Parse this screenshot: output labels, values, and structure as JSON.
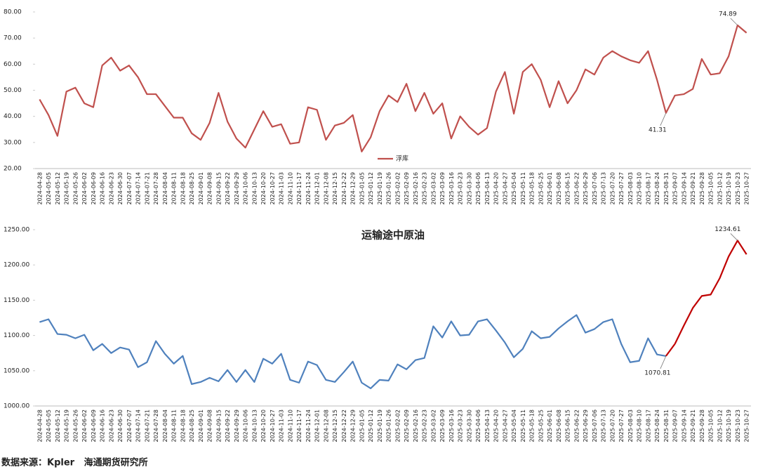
{
  "chart_data": [
    {
      "type": "line",
      "categories": [
        "2024-04-28",
        "2024-05-05",
        "2024-05-12",
        "2024-05-19",
        "2024-05-26",
        "2024-06-02",
        "2024-06-09",
        "2024-06-16",
        "2024-06-23",
        "2024-06-30",
        "2024-07-07",
        "2024-07-14",
        "2024-07-21",
        "2024-07-28",
        "2024-08-04",
        "2024-08-11",
        "2024-08-18",
        "2024-08-25",
        "2024-09-01",
        "2024-09-08",
        "2024-09-15",
        "2024-09-22",
        "2024-09-29",
        "2024-10-06",
        "2024-10-13",
        "2024-10-20",
        "2024-10-27",
        "2024-11-03",
        "2024-11-10",
        "2024-11-17",
        "2024-11-24",
        "2024-12-01",
        "2024-12-08",
        "2024-12-15",
        "2024-12-22",
        "2024-12-29",
        "2025-01-05",
        "2025-01-12",
        "2025-01-19",
        "2025-01-26",
        "2025-02-02",
        "2025-02-09",
        "2025-02-16",
        "2025-02-23",
        "2025-03-02",
        "2025-03-09",
        "2025-03-16",
        "2025-03-23",
        "2025-03-30",
        "2025-04-06",
        "2025-04-13",
        "2025-04-20",
        "2025-04-27",
        "2025-05-04",
        "2025-05-11",
        "2025-05-18",
        "2025-05-25",
        "2025-06-01",
        "2025-06-08",
        "2025-06-15",
        "2025-06-22",
        "2025-06-29",
        "2025-07-06",
        "2025-07-13",
        "2025-07-20",
        "2025-07-27",
        "2025-08-03",
        "2025-08-10",
        "2025-08-17",
        "2025-08-24",
        "2025-08-31",
        "2025-09-07",
        "2025-09-14",
        "2025-09-21",
        "2025-09-28",
        "2025-10-05",
        "2025-10-12",
        "2025-10-19",
        "2025-10-23",
        "2025-10-27"
      ],
      "series": [
        {
          "name": "浮库",
          "color": "#c0504d",
          "values": [
            46.5,
            40.5,
            32.5,
            49.5,
            51,
            45,
            43.5,
            59.5,
            62.5,
            57.5,
            59.5,
            55,
            48.5,
            48.5,
            44,
            39.5,
            39.5,
            33.5,
            31,
            37.5,
            49,
            38,
            31.5,
            28,
            35,
            42,
            36,
            37,
            29.5,
            30,
            43.5,
            42.5,
            31,
            36.5,
            37.5,
            40.5,
            26.5,
            32,
            42,
            48,
            45.5,
            52.5,
            42,
            49,
            41,
            45,
            31.5,
            40,
            36,
            33,
            35.5,
            49.5,
            57,
            41,
            57,
            60,
            54,
            43.5,
            53.5,
            45,
            50,
            58,
            56,
            62.5,
            65,
            63,
            61.5,
            60.5,
            65,
            54,
            41.31,
            48,
            48.5,
            50.5,
            62,
            56,
            56.5,
            63,
            74.89,
            72
          ],
          "value_labels": [
            null,
            null,
            null,
            null,
            null,
            null,
            null,
            null,
            null,
            null,
            null,
            null,
            null,
            null,
            null,
            null,
            null,
            null,
            null,
            null,
            null,
            null,
            null,
            null,
            null,
            null,
            null,
            null,
            null,
            null,
            null,
            null,
            null,
            null,
            null,
            null,
            null,
            null,
            null,
            null,
            null,
            null,
            null,
            null,
            null,
            null,
            null,
            null,
            null,
            null,
            null,
            null,
            null,
            null,
            null,
            null,
            null,
            null,
            null,
            null,
            null,
            null,
            null,
            null,
            null,
            null,
            null,
            null,
            null,
            null,
            "41.31",
            null,
            null,
            null,
            null,
            null,
            null,
            null,
            "74.89",
            null
          ]
        }
      ],
      "ylim": [
        20,
        80
      ],
      "yticks": [
        {
          "value": 20,
          "label": "20.00"
        },
        {
          "value": 30,
          "label": "30.00"
        },
        {
          "value": 40,
          "label": "40.00"
        },
        {
          "value": 50,
          "label": "50.00"
        },
        {
          "value": 60,
          "label": "60.00"
        },
        {
          "value": 70,
          "label": "70.00"
        },
        {
          "value": 80,
          "label": "80.00"
        }
      ],
      "grid": false,
      "legend": "lower center"
    },
    {
      "type": "line",
      "title": "运输途中原油",
      "categories": [
        "2024-04-28",
        "2024-05-05",
        "2024-05-12",
        "2024-05-19",
        "2024-05-26",
        "2024-06-02",
        "2024-06-09",
        "2024-06-16",
        "2024-06-23",
        "2024-06-30",
        "2024-07-07",
        "2024-07-14",
        "2024-07-21",
        "2024-07-28",
        "2024-08-04",
        "2024-08-11",
        "2024-08-18",
        "2024-08-25",
        "2024-09-01",
        "2024-09-08",
        "2024-09-15",
        "2024-09-22",
        "2024-09-29",
        "2024-10-06",
        "2024-10-13",
        "2024-10-20",
        "2024-10-27",
        "2024-11-03",
        "2024-11-10",
        "2024-11-17",
        "2024-11-24",
        "2024-12-01",
        "2024-12-08",
        "2024-12-15",
        "2024-12-22",
        "2024-12-29",
        "2025-01-05",
        "2025-01-12",
        "2025-01-19",
        "2025-01-26",
        "2025-02-02",
        "2025-02-09",
        "2025-02-16",
        "2025-02-23",
        "2025-03-02",
        "2025-03-09",
        "2025-03-16",
        "2025-03-23",
        "2025-03-30",
        "2025-04-06",
        "2025-04-13",
        "2025-04-20",
        "2025-04-27",
        "2025-05-04",
        "2025-05-11",
        "2025-05-18",
        "2025-05-25",
        "2025-06-01",
        "2025-06-08",
        "2025-06-15",
        "2025-06-22",
        "2025-06-29",
        "2025-07-06",
        "2025-07-13",
        "2025-07-20",
        "2025-07-27",
        "2025-08-03",
        "2025-08-10",
        "2025-08-17",
        "2025-08-24",
        "2025-08-31",
        "2025-09-07",
        "2025-09-14",
        "2025-09-21",
        "2025-09-28",
        "2025-10-05",
        "2025-10-12",
        "2025-10-19",
        "2025-10-23",
        "2025-10-27"
      ],
      "series": [
        {
          "color": "#4f81bd",
          "values": [
            1119,
            1123,
            1102,
            1101,
            1096,
            1101,
            1079,
            1088,
            1075,
            1083,
            1080,
            1055,
            1062,
            1092,
            1074,
            1060,
            1071,
            1031,
            1034,
            1040,
            1035,
            1051,
            1034,
            1051,
            1034,
            1067,
            1060,
            1074,
            1037,
            1033,
            1063,
            1058,
            1037,
            1034,
            1048,
            1063,
            1033,
            1025,
            1037,
            1036,
            1059,
            1052,
            1065,
            1068,
            1113,
            1097,
            1120,
            1100,
            1101,
            1120,
            1123,
            1107,
            1090,
            1069,
            1081,
            1106,
            1096,
            1098,
            1110,
            1120,
            1129,
            1104,
            1109,
            1119,
            1123,
            1088,
            1062,
            1064,
            1096,
            1073,
            1070.81,
            null,
            null,
            null,
            null,
            null,
            null,
            null,
            null,
            null
          ],
          "value_labels": [
            null,
            null,
            null,
            null,
            null,
            null,
            null,
            null,
            null,
            null,
            null,
            null,
            null,
            null,
            null,
            null,
            null,
            null,
            null,
            null,
            null,
            null,
            null,
            null,
            null,
            null,
            null,
            null,
            null,
            null,
            null,
            null,
            null,
            null,
            null,
            null,
            null,
            null,
            null,
            null,
            null,
            null,
            null,
            null,
            null,
            null,
            null,
            null,
            null,
            null,
            null,
            null,
            null,
            null,
            null,
            null,
            null,
            null,
            null,
            null,
            null,
            null,
            null,
            null,
            null,
            null,
            null,
            null,
            null,
            null,
            "1070.81",
            null,
            null,
            null,
            null,
            null,
            null,
            null,
            null,
            null
          ]
        },
        {
          "color": "#c00000",
          "values": [
            null,
            null,
            null,
            null,
            null,
            null,
            null,
            null,
            null,
            null,
            null,
            null,
            null,
            null,
            null,
            null,
            null,
            null,
            null,
            null,
            null,
            null,
            null,
            null,
            null,
            null,
            null,
            null,
            null,
            null,
            null,
            null,
            null,
            null,
            null,
            null,
            null,
            null,
            null,
            null,
            null,
            null,
            null,
            null,
            null,
            null,
            null,
            null,
            null,
            null,
            null,
            null,
            null,
            null,
            null,
            null,
            null,
            null,
            null,
            null,
            null,
            null,
            null,
            null,
            null,
            null,
            null,
            null,
            null,
            null,
            null,
            1088,
            1114,
            1139,
            1156,
            1158,
            1181,
            1212,
            1234.61,
            1215
          ],
          "value_labels": [
            null,
            null,
            null,
            null,
            null,
            null,
            null,
            null,
            null,
            null,
            null,
            null,
            null,
            null,
            null,
            null,
            null,
            null,
            null,
            null,
            null,
            null,
            null,
            null,
            null,
            null,
            null,
            null,
            null,
            null,
            null,
            null,
            null,
            null,
            null,
            null,
            null,
            null,
            null,
            null,
            null,
            null,
            null,
            null,
            null,
            null,
            null,
            null,
            null,
            null,
            null,
            null,
            null,
            null,
            null,
            null,
            null,
            null,
            null,
            null,
            null,
            null,
            null,
            null,
            null,
            null,
            null,
            null,
            null,
            null,
            null,
            null,
            null,
            null,
            null,
            null,
            null,
            null,
            "1234.61",
            null
          ]
        }
      ],
      "ylim": [
        1000,
        1250
      ],
      "yticks": [
        {
          "value": 1000,
          "label": "1000.00"
        },
        {
          "value": 1050,
          "label": "1050.00"
        },
        {
          "value": 1100,
          "label": "1100.00"
        },
        {
          "value": 1150,
          "label": "1150.00"
        },
        {
          "value": 1200,
          "label": "1200.00"
        },
        {
          "value": 1250,
          "label": "1250.00"
        }
      ],
      "grid": false
    }
  ],
  "source": "数据来源：Kpler   海通期货研究所"
}
